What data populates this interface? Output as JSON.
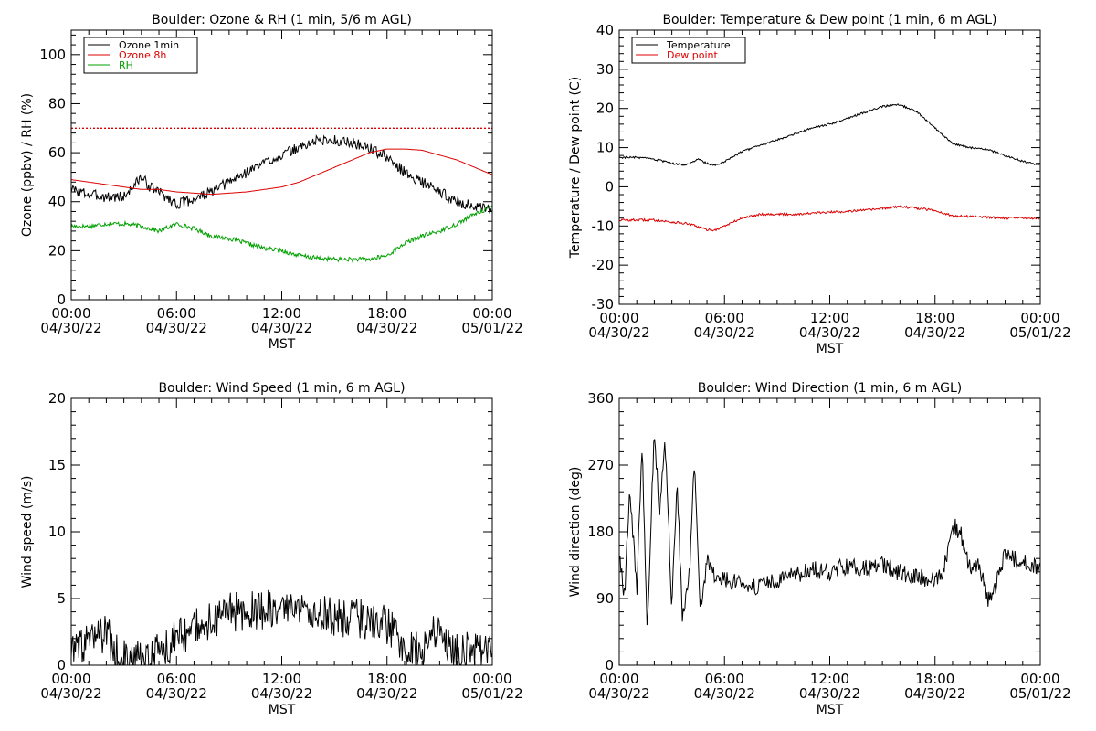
{
  "colors": {
    "ozone_1min": "#000000",
    "ozone_8h": "#dd0000",
    "rh": "#00a000",
    "temperature": "#000000",
    "dew_point": "#dd0000",
    "reference_line": "#dd0000",
    "wind": "#000000"
  },
  "time_ticks": [
    {
      "time": "00:00",
      "date": "04/30/22",
      "hour": 0
    },
    {
      "time": "06:00",
      "date": "04/30/22",
      "hour": 6
    },
    {
      "time": "12:00",
      "date": "04/30/22",
      "hour": 12
    },
    {
      "time": "18:00",
      "date": "04/30/22",
      "hour": 18
    },
    {
      "time": "00:00",
      "date": "05/01/22",
      "hour": 24
    }
  ],
  "chart_data": [
    {
      "id": "ozone",
      "type": "line",
      "title": "Boulder: Ozone & RH (1 min, 5/6 m AGL)",
      "xlabel": "MST",
      "ylabel": "Ozone (ppbv) / RH (%)",
      "xlim": [
        0,
        24
      ],
      "ylim": [
        0,
        110
      ],
      "yticks": [
        0,
        20,
        40,
        60,
        80,
        100
      ],
      "legend_position": "top-left",
      "reference_line": {
        "y": 70,
        "style": "dotted"
      },
      "series": [
        {
          "name": "Ozone 1min",
          "color": "#000000",
          "noise": 2.2,
          "x": [
            0,
            1,
            2,
            3,
            3.5,
            4,
            4.5,
            5,
            6,
            7,
            8,
            9,
            10,
            11,
            12,
            13,
            14,
            15,
            16,
            17,
            18,
            19,
            20,
            21,
            22,
            23,
            24
          ],
          "y": [
            45,
            43,
            42,
            42,
            46,
            50,
            46,
            44,
            39,
            41,
            44,
            48,
            52,
            56,
            59,
            62,
            65,
            65,
            64,
            62,
            58,
            52,
            48,
            44,
            40,
            38,
            36
          ]
        },
        {
          "name": "Ozone 8h",
          "color": "#dd0000",
          "noise": 0,
          "x": [
            0,
            1,
            2,
            3,
            4,
            5,
            6,
            7,
            8,
            9,
            10,
            11,
            12,
            13,
            14,
            15,
            16,
            17,
            18,
            19,
            20,
            21,
            22,
            23,
            24
          ],
          "y": [
            49,
            48,
            47,
            46,
            45,
            45,
            44,
            43.5,
            43,
            43.5,
            44,
            45,
            46,
            48,
            51,
            54,
            57,
            60,
            61.5,
            61.5,
            61,
            59,
            57,
            54,
            51
          ]
        },
        {
          "name": "RH",
          "color": "#00a000",
          "noise": 0.9,
          "x": [
            0,
            1,
            2,
            3,
            4,
            5,
            6,
            7,
            8,
            9,
            10,
            11,
            12,
            13,
            14,
            15,
            16,
            17,
            18,
            19,
            20,
            21,
            22,
            23,
            24
          ],
          "y": [
            30,
            30,
            31,
            31,
            30,
            28,
            31,
            29,
            26,
            25,
            23,
            21,
            20,
            18,
            17,
            16.5,
            16.5,
            16.5,
            18,
            23,
            26,
            28,
            31,
            35,
            38
          ]
        }
      ]
    },
    {
      "id": "temperature",
      "type": "line",
      "title": "Boulder: Temperature & Dew point (1 min, 6 m AGL)",
      "xlabel": "MST",
      "ylabel": "Temperature / Dew point (C)",
      "xlim": [
        0,
        24
      ],
      "ylim": [
        -30,
        40
      ],
      "yticks": [
        -30,
        -20,
        -10,
        0,
        10,
        20,
        30,
        40
      ],
      "legend_position": "top-left",
      "series": [
        {
          "name": "Temperature",
          "color": "#000000",
          "noise": 0.25,
          "x": [
            0,
            1,
            2,
            3,
            3.7,
            4,
            4.5,
            5,
            5.5,
            6,
            7,
            8,
            9,
            10,
            11,
            12,
            13,
            14,
            15,
            16,
            17,
            18,
            19,
            20,
            21,
            22,
            23,
            24
          ],
          "y": [
            7.5,
            7.5,
            7,
            6,
            5.5,
            6,
            7,
            6,
            5.5,
            6.5,
            9,
            10.5,
            12,
            13.5,
            15,
            16,
            17.5,
            19,
            20.5,
            21,
            19,
            15,
            11,
            10,
            9.5,
            8,
            6.5,
            5.5
          ]
        },
        {
          "name": "Dew point",
          "color": "#dd0000",
          "noise": 0.3,
          "x": [
            0,
            2,
            4,
            5,
            5.5,
            6,
            7,
            8,
            10,
            12,
            14,
            15,
            16,
            17,
            18,
            19,
            20,
            22,
            24
          ],
          "y": [
            -8.5,
            -8.5,
            -9.5,
            -11,
            -11,
            -10,
            -8,
            -7,
            -7,
            -6.5,
            -6,
            -5.5,
            -5,
            -5.5,
            -6,
            -7.5,
            -7.5,
            -8,
            -8
          ]
        }
      ]
    },
    {
      "id": "wind_speed",
      "type": "line",
      "title": "Boulder: Wind Speed (1 min, 6 m AGL)",
      "xlabel": "MST",
      "ylabel": "Wind speed (m/s)",
      "xlim": [
        0,
        24
      ],
      "ylim": [
        0,
        20
      ],
      "yticks": [
        0,
        5,
        10,
        15,
        20
      ],
      "series": [
        {
          "name": "",
          "color": "#000000",
          "noise": 1.5,
          "floor": 0,
          "x": [
            0,
            1,
            2,
            2.5,
            3,
            4,
            5,
            6,
            7,
            8,
            9,
            10,
            11,
            12,
            13,
            14,
            15,
            16,
            17,
            18,
            19,
            20,
            21,
            21.5,
            22,
            23,
            24
          ],
          "y": [
            1.2,
            1.5,
            2.5,
            1,
            0.4,
            0.3,
            1,
            2,
            2.8,
            3.5,
            4,
            4,
            4.2,
            4,
            4,
            3.8,
            3.6,
            3.6,
            3.4,
            3,
            1.5,
            1,
            3,
            1.5,
            1,
            1,
            1.2
          ]
        }
      ]
    },
    {
      "id": "wind_direction",
      "type": "line",
      "title": "Boulder: Wind Direction (1 min, 6 m AGL)",
      "xlabel": "MST",
      "ylabel": "Wind direction (deg)",
      "xlim": [
        0,
        24
      ],
      "ylim": [
        0,
        360
      ],
      "yticks": [
        0,
        90,
        180,
        270,
        360
      ],
      "series": [
        {
          "name": "",
          "color": "#000000",
          "noise": 12,
          "floor": 0,
          "ceil": 360,
          "x": [
            0,
            0.3,
            0.6,
            1,
            1.3,
            1.6,
            2,
            2.3,
            2.6,
            3,
            3.3,
            3.6,
            4,
            4.3,
            4.6,
            5,
            5.5,
            6,
            7,
            8,
            9,
            10,
            11,
            12,
            13,
            14,
            15,
            16,
            17,
            18,
            18.5,
            19,
            19.5,
            20,
            20.5,
            21,
            21.5,
            22,
            23,
            24
          ],
          "y": [
            150,
            90,
            240,
            100,
            300,
            50,
            320,
            200,
            310,
            80,
            250,
            60,
            120,
            280,
            70,
            140,
            120,
            115,
            110,
            105,
            115,
            120,
            130,
            125,
            135,
            130,
            135,
            125,
            120,
            115,
            130,
            190,
            175,
            130,
            135,
            90,
            110,
            150,
            140,
            130
          ]
        }
      ]
    }
  ]
}
